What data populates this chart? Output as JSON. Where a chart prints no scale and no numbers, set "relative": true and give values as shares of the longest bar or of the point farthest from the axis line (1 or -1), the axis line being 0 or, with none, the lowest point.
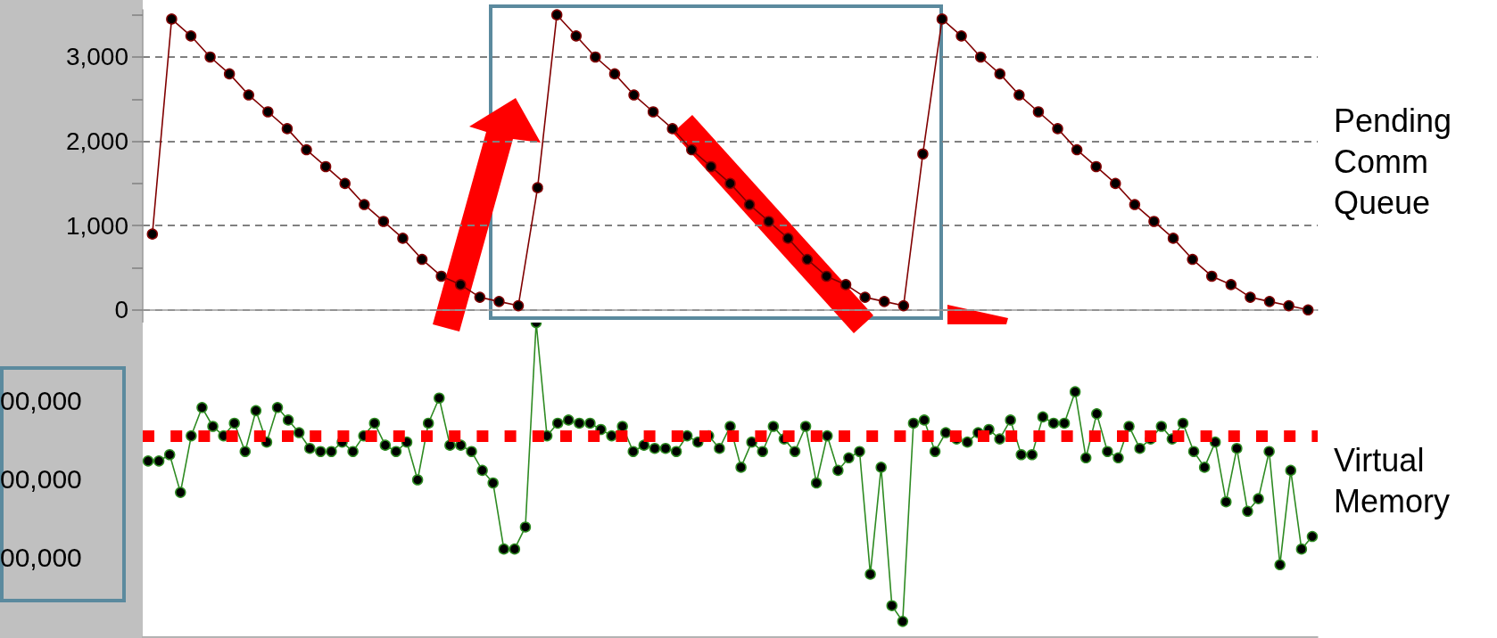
{
  "chart_data": [
    {
      "type": "line",
      "ylabel": "Pending Comm Queue",
      "ylim": [
        -150,
        3560
      ],
      "yticks": [
        0,
        {
          "value": 500,
          "label": null
        },
        {
          "value": 1000,
          "label": "1,000"
        },
        {
          "value": 1500,
          "label": null
        },
        {
          "value": 2000,
          "label": "2,000"
        },
        {
          "value": 2500,
          "label": null
        },
        {
          "value": 3000,
          "label": "3,000"
        },
        {
          "value": 3500,
          "label": null
        }
      ],
      "tick_labels": "y",
      "grid": "y",
      "marker": "circle",
      "line_style": "solid",
      "categories": [
        null,
        null,
        null,
        null,
        null,
        null,
        null,
        null,
        null,
        null,
        null,
        null,
        null,
        null,
        null,
        null,
        null,
        null,
        null,
        null,
        null,
        null,
        null,
        null,
        null,
        null,
        null,
        null,
        null,
        null,
        null,
        null,
        null,
        null,
        null,
        null,
        null,
        null,
        null,
        null,
        null,
        null,
        null,
        null,
        null,
        null,
        null,
        null,
        null,
        null,
        null,
        null,
        null,
        null,
        null,
        null,
        null,
        null,
        null,
        null,
        null
      ],
      "series": [
        {
          "color": "#800000",
          "values": [
            900,
            3450,
            3250,
            3000,
            2800,
            2550,
            2350,
            2150,
            1900,
            1700,
            1500,
            1250,
            1050,
            850,
            600,
            400,
            300,
            150,
            100,
            50,
            1450,
            3500,
            3250,
            3000,
            2800,
            2550,
            2350,
            2150,
            1900,
            1700,
            1500,
            1250,
            1050,
            850,
            600,
            400,
            300,
            150,
            100,
            50,
            1850,
            3450,
            3250,
            3000,
            2800,
            2550,
            2350,
            2150,
            1900,
            1700,
            1500,
            1250,
            1050,
            850,
            600,
            400,
            300,
            150,
            100,
            50,
            0
          ]
        }
      ]
    },
    {
      "type": "line",
      "ylabel": "Virtual Memory",
      "relative": true,
      "tick_labels": false,
      "marker": "circle",
      "line_style": "solid",
      "annotations": [
        "00,000",
        "00,000",
        "00,000"
      ],
      "categories": [
        null,
        null,
        null,
        null,
        null,
        null,
        null,
        null,
        null,
        null,
        null,
        null,
        null,
        null,
        null,
        null,
        null,
        null,
        null,
        null,
        null,
        null,
        null,
        null,
        null,
        null,
        null,
        null,
        null,
        null,
        null,
        null,
        null,
        null,
        null,
        null,
        null,
        null,
        null,
        null,
        null,
        null,
        null,
        null,
        null,
        null,
        null,
        null,
        null,
        null,
        null,
        null,
        null,
        null,
        null,
        null,
        null,
        null,
        null,
        null,
        null,
        null,
        null,
        null,
        null,
        null,
        null,
        null,
        null,
        null,
        null,
        null,
        null,
        null,
        null,
        null,
        null,
        null,
        null,
        null,
        null,
        null,
        null,
        null,
        null,
        null,
        null,
        null,
        null,
        null,
        null,
        null,
        null,
        null,
        null,
        null,
        null,
        null,
        null,
        null,
        null,
        null,
        null,
        null,
        null,
        null,
        null,
        null,
        null
      ],
      "ref_lines": [
        {
          "axis": "y",
          "value": 0.64,
          "color": "#ff0000",
          "line_style": "dotted"
        }
      ],
      "series": [
        {
          "color": "#2e8b22",
          "values": [
            0.56,
            0.56,
            0.58,
            0.46,
            0.64,
            0.73,
            0.67,
            0.64,
            0.68,
            0.59,
            0.72,
            0.62,
            0.73,
            0.69,
            0.65,
            0.6,
            0.59,
            0.59,
            0.62,
            0.59,
            0.64,
            0.68,
            0.61,
            0.59,
            0.62,
            0.5,
            0.68,
            0.76,
            0.61,
            0.61,
            0.59,
            0.53,
            0.49,
            0.28,
            0.28,
            0.35,
            1,
            0.64,
            0.68,
            0.69,
            0.68,
            0.68,
            0.66,
            0.64,
            0.67,
            0.59,
            0.61,
            0.6,
            0.6,
            0.59,
            0.64,
            0.62,
            0.64,
            0.6,
            0.67,
            0.54,
            0.62,
            0.59,
            0.67,
            0.63,
            0.59,
            0.67,
            0.49,
            0.64,
            0.53,
            0.57,
            0.59,
            0.2,
            0.54,
            0.1,
            0.05,
            0.68,
            0.69,
            0.59,
            0.65,
            0.63,
            0.62,
            0.65,
            0.66,
            0.63,
            0.69,
            0.58,
            0.58,
            0.7,
            0.68,
            0.68,
            0.78,
            0.57,
            0.71,
            0.59,
            0.57,
            0.67,
            0.6,
            0.63,
            0.67,
            0.63,
            0.68,
            0.59,
            0.54,
            0.62,
            0.43,
            0.6,
            0.4,
            0.44,
            0.59,
            0.23,
            0.53,
            0.28,
            0.32
          ]
        }
      ]
    }
  ]
}
